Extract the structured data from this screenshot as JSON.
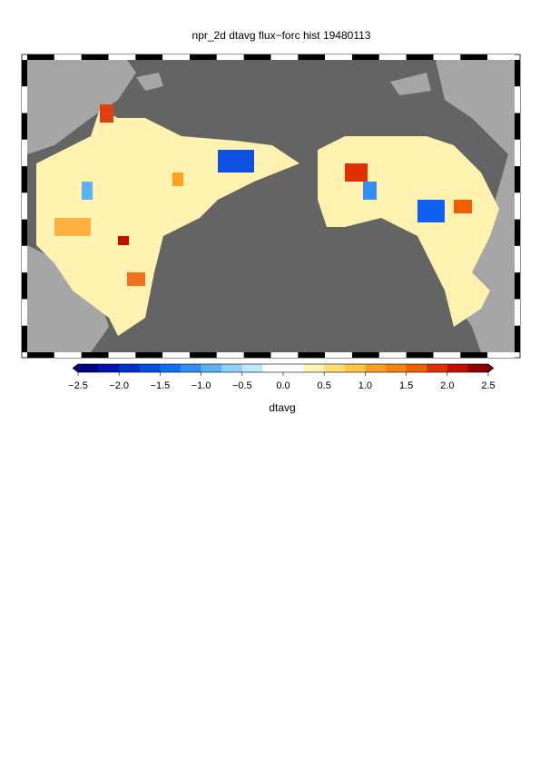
{
  "chart_data": {
    "type": "colormap",
    "title": "npr_2d dtavg flux−forc hist 19480113",
    "colorbar_label": "dtavg",
    "clim": [
      -2.5,
      2.5
    ],
    "ticks": [
      {
        "value": -2.5,
        "label": "−2.5"
      },
      {
        "value": -2.0,
        "label": "−2.0"
      },
      {
        "value": -1.5,
        "label": "−1.5"
      },
      {
        "value": -1.0,
        "label": "−1.0"
      },
      {
        "value": -0.5,
        "label": "−0.5"
      },
      {
        "value": 0.0,
        "label": "0.0"
      },
      {
        "value": 0.5,
        "label": "0.5"
      },
      {
        "value": 1.0,
        "label": "1.0"
      },
      {
        "value": 1.5,
        "label": "1.5"
      },
      {
        "value": 2.0,
        "label": "2.0"
      },
      {
        "value": 2.5,
        "label": "2.5"
      }
    ],
    "colors": [
      "#000080",
      "#0010b0",
      "#0030d0",
      "#0050e0",
      "#1070f0",
      "#3090f8",
      "#60b0f8",
      "#90d0fc",
      "#c0e8ff",
      "#ffffff",
      "#ffffff",
      "#fff4b0",
      "#ffe070",
      "#ffc840",
      "#ffa020",
      "#f88010",
      "#f06000",
      "#e03000",
      "#c01000",
      "#900000"
    ]
  }
}
